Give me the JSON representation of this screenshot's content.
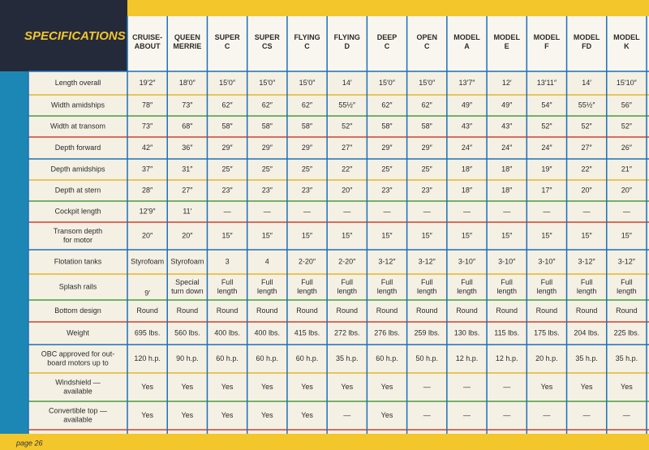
{
  "header": {
    "title": "SPECIFICATIONS"
  },
  "table": {
    "columns": [
      [
        "CRUISE-",
        "ABOUT"
      ],
      [
        "QUEEN",
        "MERRIE"
      ],
      [
        "SUPER",
        "C"
      ],
      [
        "SUPER",
        "CS"
      ],
      [
        "FLYING",
        "C"
      ],
      [
        "FLYING",
        "D"
      ],
      [
        "DEEP",
        "C"
      ],
      [
        "OPEN",
        "C"
      ],
      [
        "MODEL",
        "A"
      ],
      [
        "MODEL",
        "E"
      ],
      [
        "MODEL",
        "F"
      ],
      [
        "MODEL",
        "FD"
      ],
      [
        "MODEL",
        "K"
      ]
    ],
    "rows": [
      {
        "label": [
          "Length overall"
        ],
        "cells": [
          "19′2″",
          "18′0″",
          "15′0″",
          "15′0″",
          "15′0″",
          "14′",
          "15′0″",
          "15′0″",
          "13′7″",
          "12′",
          "13′11″",
          "14′",
          "15′10″"
        ]
      },
      {
        "label": [
          "Width amidships"
        ],
        "cells": [
          "78″",
          "73″",
          "62″",
          "62″",
          "62″",
          "55½″",
          "62″",
          "62″",
          "49″",
          "49″",
          "54″",
          "55½″",
          "56″"
        ]
      },
      {
        "label": [
          "Width at transom"
        ],
        "cells": [
          "73″",
          "68″",
          "58″",
          "58″",
          "58″",
          "52″",
          "58″",
          "58″",
          "43″",
          "43″",
          "52″",
          "52″",
          "52″"
        ]
      },
      {
        "label": [
          "Depth forward"
        ],
        "cells": [
          "42″",
          "36″",
          "29″",
          "29″",
          "29″",
          "27″",
          "29″",
          "29″",
          "24″",
          "24″",
          "24″",
          "27″",
          "26″"
        ]
      },
      {
        "label": [
          "Depth amidships"
        ],
        "cells": [
          "37″",
          "31″",
          "25″",
          "25″",
          "25″",
          "22″",
          "25″",
          "25″",
          "18″",
          "18″",
          "19″",
          "22″",
          "21″"
        ]
      },
      {
        "label": [
          "Depth at stern"
        ],
        "cells": [
          "28″",
          "27″",
          "23″",
          "23″",
          "23″",
          "20″",
          "23″",
          "23″",
          "18″",
          "18″",
          "17″",
          "20″",
          "20″"
        ]
      },
      {
        "label": [
          "Cockpit length"
        ],
        "cells": [
          "12′9″",
          "11′",
          "—",
          "—",
          "—",
          "—",
          "—",
          "—",
          "—",
          "—",
          "—",
          "—",
          "—"
        ]
      },
      {
        "label": [
          "Transom depth",
          "for motor"
        ],
        "cells": [
          "20″",
          "20″",
          "15″",
          "15″",
          "15″",
          "15″",
          "15″",
          "15″",
          "15″",
          "15″",
          "15″",
          "15″",
          "15″"
        ]
      },
      {
        "label": [
          "Flotation tanks"
        ],
        "cells": [
          "Styrofoam",
          "Styrofoam",
          "3",
          "4",
          "2-20″",
          "2-20″",
          "3-12″",
          "3-12″",
          "3-10″",
          "3-10″",
          "3-10″",
          "3-12″",
          "3-12″"
        ]
      },
      {
        "label": [
          "Splash rails"
        ],
        "cells": [
          "9′",
          [
            "Special",
            "turn down"
          ],
          [
            "Full",
            "length"
          ],
          [
            "Full",
            "length"
          ],
          [
            "Full",
            "length"
          ],
          [
            "Full",
            "length"
          ],
          [
            "Full",
            "length"
          ],
          [
            "Full",
            "length"
          ],
          [
            "Full",
            "length"
          ],
          [
            "Full",
            "length"
          ],
          [
            "Full",
            "length"
          ],
          [
            "Full",
            "length"
          ],
          [
            "Full",
            "length"
          ]
        ]
      },
      {
        "label": [
          "Bottom design"
        ],
        "cells": [
          "Round",
          "Round",
          "Round",
          "Round",
          "Round",
          "Round",
          "Round",
          "Round",
          "Round",
          "Round",
          "Round",
          "Round",
          "Round"
        ]
      },
      {
        "label": [
          "Weight"
        ],
        "cells": [
          "695 lbs.",
          "560 lbs.",
          "400 lbs.",
          "400 lbs.",
          "415 lbs.",
          "272 lbs.",
          "276 lbs.",
          "259 lbs.",
          "130 lbs.",
          "115 lbs.",
          "175 lbs.",
          "204 lbs.",
          "225 lbs."
        ]
      },
      {
        "label": [
          "OBC approved for out-",
          "board motors up to"
        ],
        "cells": [
          "120 h.p.",
          "90 h.p.",
          "60 h.p.",
          "60 h.p.",
          "60 h.p.",
          "35 h.p.",
          "60 h.p.",
          "50 h.p.",
          "12 h.p.",
          "12 h.p.",
          "20 h.p.",
          "35 h.p.",
          "35 h.p."
        ]
      },
      {
        "label": [
          "Windshield —",
          "available"
        ],
        "cells": [
          "Yes",
          "Yes",
          "Yes",
          "Yes",
          "Yes",
          "Yes",
          "Yes",
          "—",
          "—",
          "—",
          "Yes",
          "Yes",
          "Yes"
        ]
      },
      {
        "label": [
          "Convertible top —",
          "available"
        ],
        "cells": [
          "Yes",
          "Yes",
          "Yes",
          "Yes",
          "Yes",
          "—",
          "Yes",
          "—",
          "—",
          "—",
          "—",
          "—",
          "—"
        ]
      }
    ]
  },
  "footer": {
    "page": "page 26"
  }
}
